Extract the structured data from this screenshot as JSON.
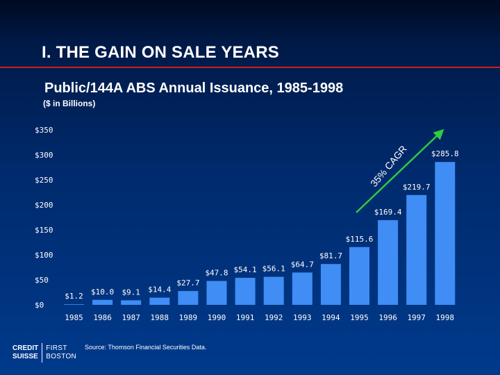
{
  "header": {
    "title": "I.  THE GAIN ON SALE YEARS",
    "subtitle": "Public/144A ABS Annual Issuance, 1985-1998",
    "units": "($ in Billions)"
  },
  "footer": {
    "source": "Source:  Thomson Financial Securities Data.",
    "logo_line1": "CREDIT",
    "logo_line2": "SUISSE",
    "logo_line3": "FIRST",
    "logo_line4": "BOSTON"
  },
  "colors": {
    "bar": "#3f8df5",
    "trend_line": "#2ecc40",
    "rule": "#d01c1c",
    "text": "#ffffff"
  },
  "chart_data": {
    "type": "bar",
    "categories": [
      "1985",
      "1986",
      "1987",
      "1988",
      "1989",
      "1990",
      "1991",
      "1992",
      "1993",
      "1994",
      "1995",
      "1996",
      "1997",
      "1998"
    ],
    "values": [
      1.2,
      10.0,
      9.1,
      14.4,
      27.7,
      47.8,
      54.1,
      56.1,
      64.7,
      81.7,
      115.6,
      169.4,
      219.7,
      285.8
    ],
    "value_labels": [
      "$1.2",
      "$10.0",
      "$9.1",
      "$14.4",
      "$27.7",
      "$47.8",
      "$54.1",
      "$56.1",
      "$64.7",
      "$81.7",
      "$115.6",
      "$169.4",
      "$219.7",
      "$285.8"
    ],
    "y_ticks": [
      0,
      50,
      100,
      150,
      200,
      250,
      300,
      350
    ],
    "y_tick_labels": [
      "$0",
      "$50",
      "$100",
      "$150",
      "$200",
      "$250",
      "$300",
      "$350"
    ],
    "ylim": [
      0,
      350
    ],
    "grid": false,
    "annotation": "35% CAGR"
  }
}
